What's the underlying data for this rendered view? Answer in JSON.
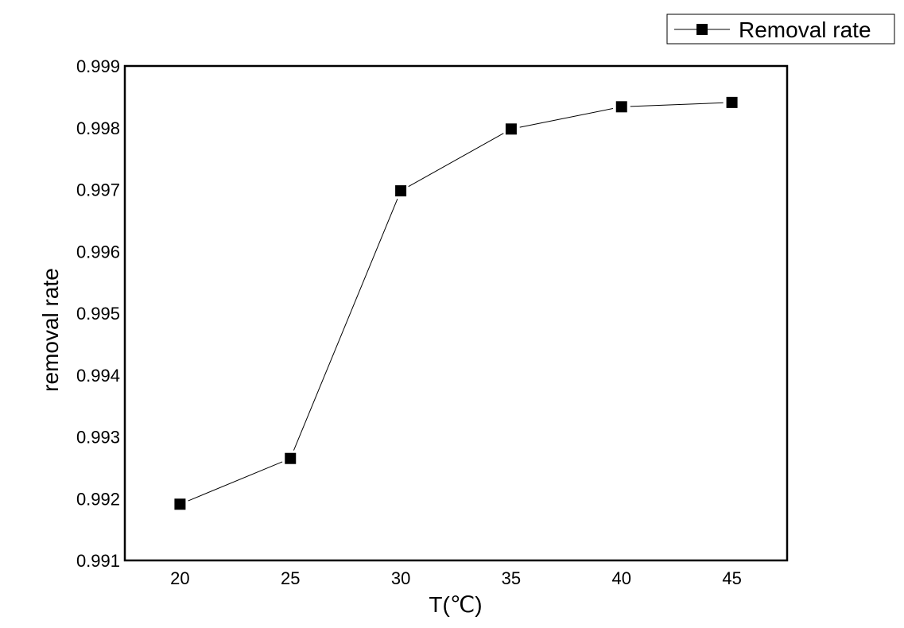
{
  "chart_data": {
    "type": "line",
    "title": "",
    "xlabel": "T(℃)",
    "ylabel": "removal rate",
    "x": [
      20,
      25,
      30,
      35,
      40,
      45
    ],
    "series": [
      {
        "name": "Removal rate",
        "marker": "square",
        "color": "#000000",
        "values": [
          0.99191,
          0.99265,
          0.99698,
          0.99798,
          0.99834,
          0.99841
        ]
      }
    ],
    "xlim": [
      17.5,
      47.5
    ],
    "ylim": [
      0.991,
      0.999
    ],
    "xticks": [
      "20",
      "25",
      "30",
      "35",
      "40",
      "45"
    ],
    "yticks": [
      "0.991",
      "0.992",
      "0.993",
      "0.994",
      "0.995",
      "0.996",
      "0.997",
      "0.998",
      "0.999"
    ],
    "grid": false,
    "legend_position": "top-right-outside"
  }
}
